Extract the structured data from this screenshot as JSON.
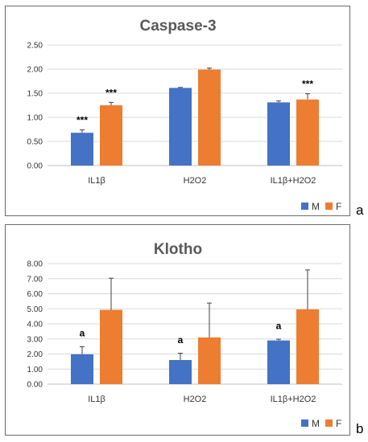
{
  "panels": {
    "a": {
      "letter": "a"
    },
    "b": {
      "letter": "b"
    }
  },
  "chart_data": [
    {
      "type": "bar",
      "title": "Caspase-3",
      "categories": [
        "IL1β",
        "H2O2",
        "IL1β+H2O2"
      ],
      "series": [
        {
          "name": "M",
          "color": "#4472c4",
          "values": [
            0.68,
            1.61,
            1.31
          ],
          "errors": [
            0.06,
            0.01,
            0.03
          ]
        },
        {
          "name": "F",
          "color": "#ed7d31",
          "values": [
            1.25,
            1.99,
            1.37
          ],
          "errors": [
            0.06,
            0.03,
            0.12
          ]
        }
      ],
      "annotations": [
        {
          "category": 0,
          "series": 0,
          "text": "***"
        },
        {
          "category": 0,
          "series": 1,
          "text": "***"
        },
        {
          "category": 2,
          "series": 1,
          "text": "***"
        }
      ],
      "ylim": [
        0,
        2.5
      ],
      "yticks": [
        "0.00",
        "0.50",
        "1.00",
        "1.50",
        "2.00",
        "2.50"
      ],
      "grid": true,
      "legend": "bottom-right"
    },
    {
      "type": "bar",
      "title": "Klotho",
      "categories": [
        "IL1β",
        "H2O2",
        "IL1β+H2O2"
      ],
      "series": [
        {
          "name": "M",
          "color": "#4472c4",
          "values": [
            1.98,
            1.6,
            2.9
          ],
          "errors": [
            0.5,
            0.45,
            0.08
          ]
        },
        {
          "name": "F",
          "color": "#ed7d31",
          "values": [
            4.93,
            3.1,
            4.96
          ],
          "errors": [
            2.1,
            2.28,
            2.62
          ]
        }
      ],
      "annotations": [
        {
          "category": 0,
          "series": 0,
          "text": "a"
        },
        {
          "category": 1,
          "series": 0,
          "text": "a"
        },
        {
          "category": 2,
          "series": 0,
          "text": "a"
        }
      ],
      "ylim": [
        0,
        8
      ],
      "yticks": [
        "0.00",
        "1.00",
        "2.00",
        "3.00",
        "4.00",
        "5.00",
        "6.00",
        "7.00",
        "8.00"
      ],
      "grid": true,
      "legend": "bottom-right"
    }
  ]
}
